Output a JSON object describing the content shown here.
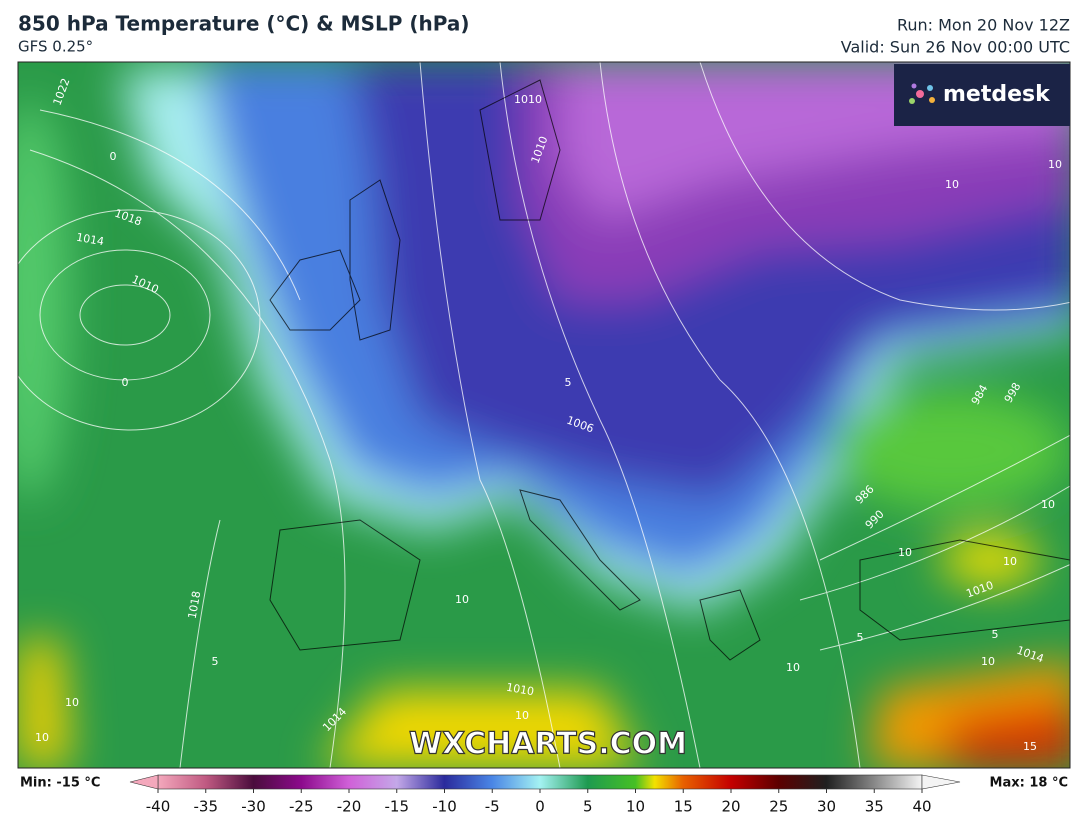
{
  "header": {
    "title": "850 hPa Temperature (°C) & MSLP (hPa)",
    "model": "GFS 0.25°",
    "run": "Run: Mon 20 Nov 12Z",
    "valid": "Valid: Sun 26 Nov 00:00 UTC"
  },
  "logo": "metdesk",
  "watermark": "WXCHARTS.COM",
  "map_labels": [
    "1022",
    "0",
    "1018",
    "1014",
    "1010",
    "0",
    "1010",
    "1010",
    "10",
    "10",
    "5",
    "1006",
    "984",
    "998",
    "986",
    "990",
    "10",
    "10",
    "10",
    "1010",
    "5",
    "1014",
    "10",
    "5",
    "10",
    "1018",
    "5",
    "10",
    "10",
    "1014",
    "1010",
    "10",
    "10",
    "15"
  ],
  "colorbar": {
    "min_label": "Min: -15 °C",
    "max_label": "Max: 18 °C",
    "ticks": [
      -40,
      -35,
      -30,
      -25,
      -20,
      -15,
      -10,
      -5,
      0,
      5,
      10,
      15,
      20,
      25,
      30,
      35,
      40
    ],
    "stops": [
      {
        "value": -40,
        "color": "#f4a8bc"
      },
      {
        "value": -35,
        "color": "#c05a82"
      },
      {
        "value": -30,
        "color": "#4a0c3c"
      },
      {
        "value": -25,
        "color": "#8c0a8c"
      },
      {
        "value": -20,
        "color": "#d060d8"
      },
      {
        "value": -15,
        "color": "#c4a8e8"
      },
      {
        "value": -10,
        "color": "#2a2a9c"
      },
      {
        "value": -5,
        "color": "#4a86e6"
      },
      {
        "value": 0,
        "color": "#a4f2f2"
      },
      {
        "value": 5,
        "color": "#1e9a50"
      },
      {
        "value": 10,
        "color": "#46c024"
      },
      {
        "value": 12,
        "color": "#f2e200"
      },
      {
        "value": 15,
        "color": "#e86000"
      },
      {
        "value": 20,
        "color": "#c40000"
      },
      {
        "value": 25,
        "color": "#5c0000"
      },
      {
        "value": 30,
        "color": "#202020"
      },
      {
        "value": 35,
        "color": "#888888"
      },
      {
        "value": 40,
        "color": "#f4f4f4"
      }
    ]
  }
}
